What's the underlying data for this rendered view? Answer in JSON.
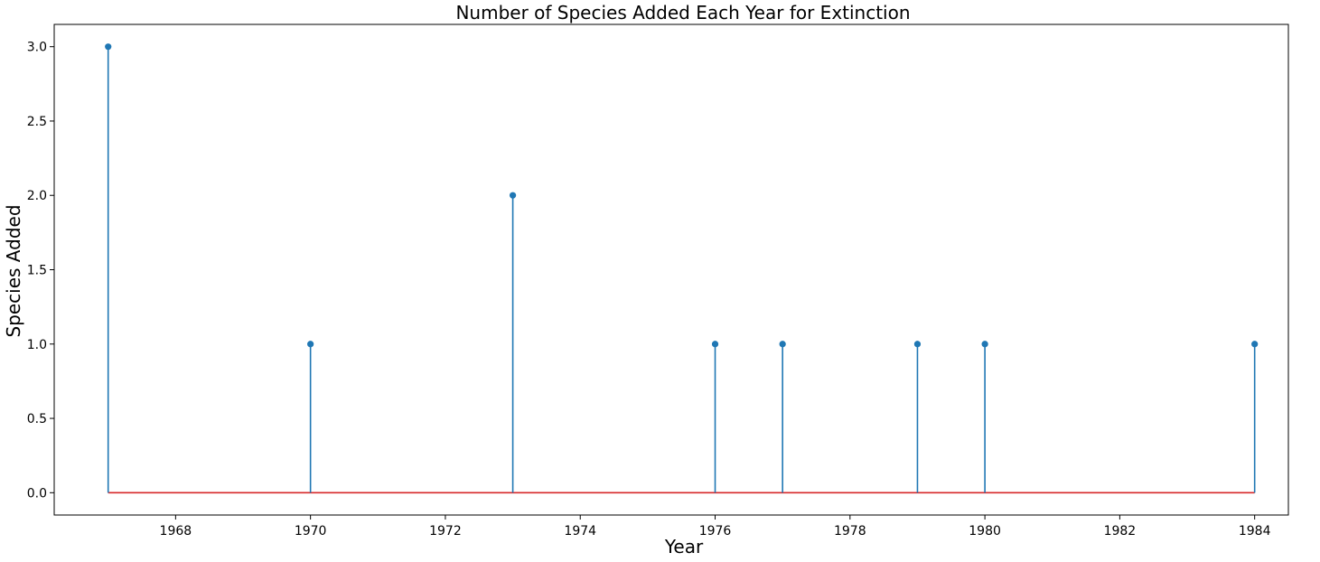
{
  "chart_data": {
    "type": "stem",
    "title": "Number of Species Added Each Year for Extinction",
    "xlabel": "Year",
    "ylabel": "Species Added",
    "x": [
      1967,
      1970,
      1973,
      1976,
      1977,
      1979,
      1980,
      1984
    ],
    "y": [
      3,
      1,
      2,
      1,
      1,
      1,
      1,
      1
    ],
    "xlim": [
      1966.2,
      1984.5
    ],
    "ylim": [
      -0.15,
      3.15
    ],
    "xticks": [
      "1968",
      "1970",
      "1972",
      "1974",
      "1976",
      "1978",
      "1980",
      "1982",
      "1984"
    ],
    "yticks": [
      "0.0",
      "0.5",
      "1.0",
      "1.5",
      "2.0",
      "2.5",
      "3.0"
    ],
    "grid": false,
    "colors": {
      "stem": "#1f77b4",
      "marker": "#1f77b4",
      "baseline": "#d62728"
    }
  }
}
